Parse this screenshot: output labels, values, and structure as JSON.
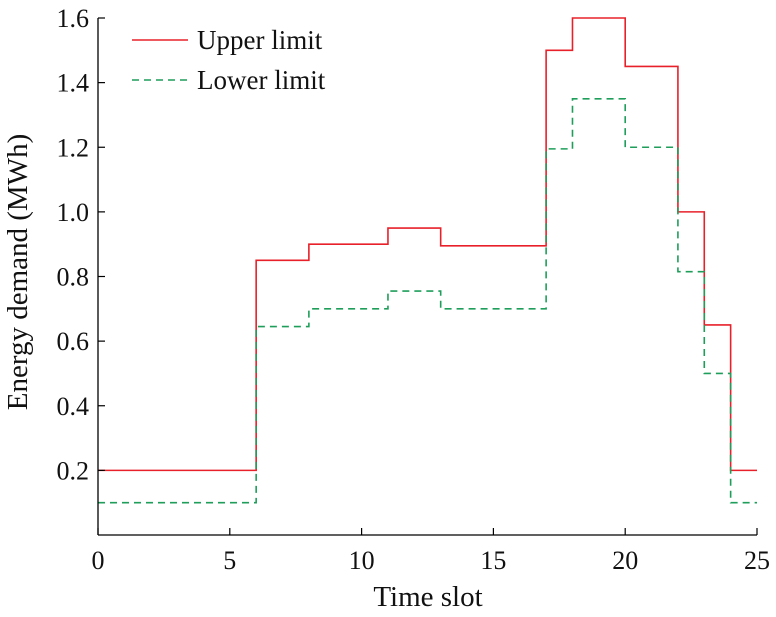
{
  "chart_data": {
    "type": "line",
    "step": true,
    "title": "",
    "xlabel": "Time slot",
    "ylabel": "Energy demand (MWh)",
    "xlim": [
      0,
      25
    ],
    "ylim": [
      0,
      1.6
    ],
    "x_ticks": [
      0,
      5,
      10,
      15,
      20,
      25
    ],
    "x_tick_labels": [
      "0",
      "5",
      "10",
      "15",
      "20",
      "25"
    ],
    "y_ticks": [
      0.2,
      0.4,
      0.6,
      0.8,
      1.0,
      1.2,
      1.4,
      1.6
    ],
    "y_tick_labels": [
      "0.2",
      "0.4",
      "0.6",
      "0.8",
      "1.0",
      "1.2",
      "1.4",
      "1.6"
    ],
    "grid": false,
    "legend_position": "top-left",
    "x": [
      0,
      1,
      2,
      3,
      4,
      5,
      6,
      7,
      8,
      9,
      10,
      11,
      12,
      13,
      14,
      15,
      16,
      17,
      18,
      19,
      20,
      21,
      22,
      23,
      24
    ],
    "series": [
      {
        "name": "Upper limit",
        "color": "#e8202a",
        "dash": "solid",
        "values": [
          0.2,
          0.2,
          0.2,
          0.2,
          0.2,
          0.2,
          0.85,
          0.85,
          0.9,
          0.9,
          0.9,
          0.95,
          0.95,
          0.895,
          0.895,
          0.895,
          0.895,
          1.5,
          1.6,
          1.6,
          1.45,
          1.45,
          1.0,
          0.65,
          0.2
        ]
      },
      {
        "name": "Lower limit",
        "color": "#1e9e5a",
        "dash": "dashed",
        "values": [
          0.1,
          0.1,
          0.1,
          0.1,
          0.1,
          0.1,
          0.645,
          0.645,
          0.7,
          0.7,
          0.7,
          0.755,
          0.755,
          0.7,
          0.7,
          0.7,
          0.7,
          1.195,
          1.35,
          1.35,
          1.2,
          1.2,
          0.815,
          0.5,
          0.1
        ]
      }
    ]
  }
}
